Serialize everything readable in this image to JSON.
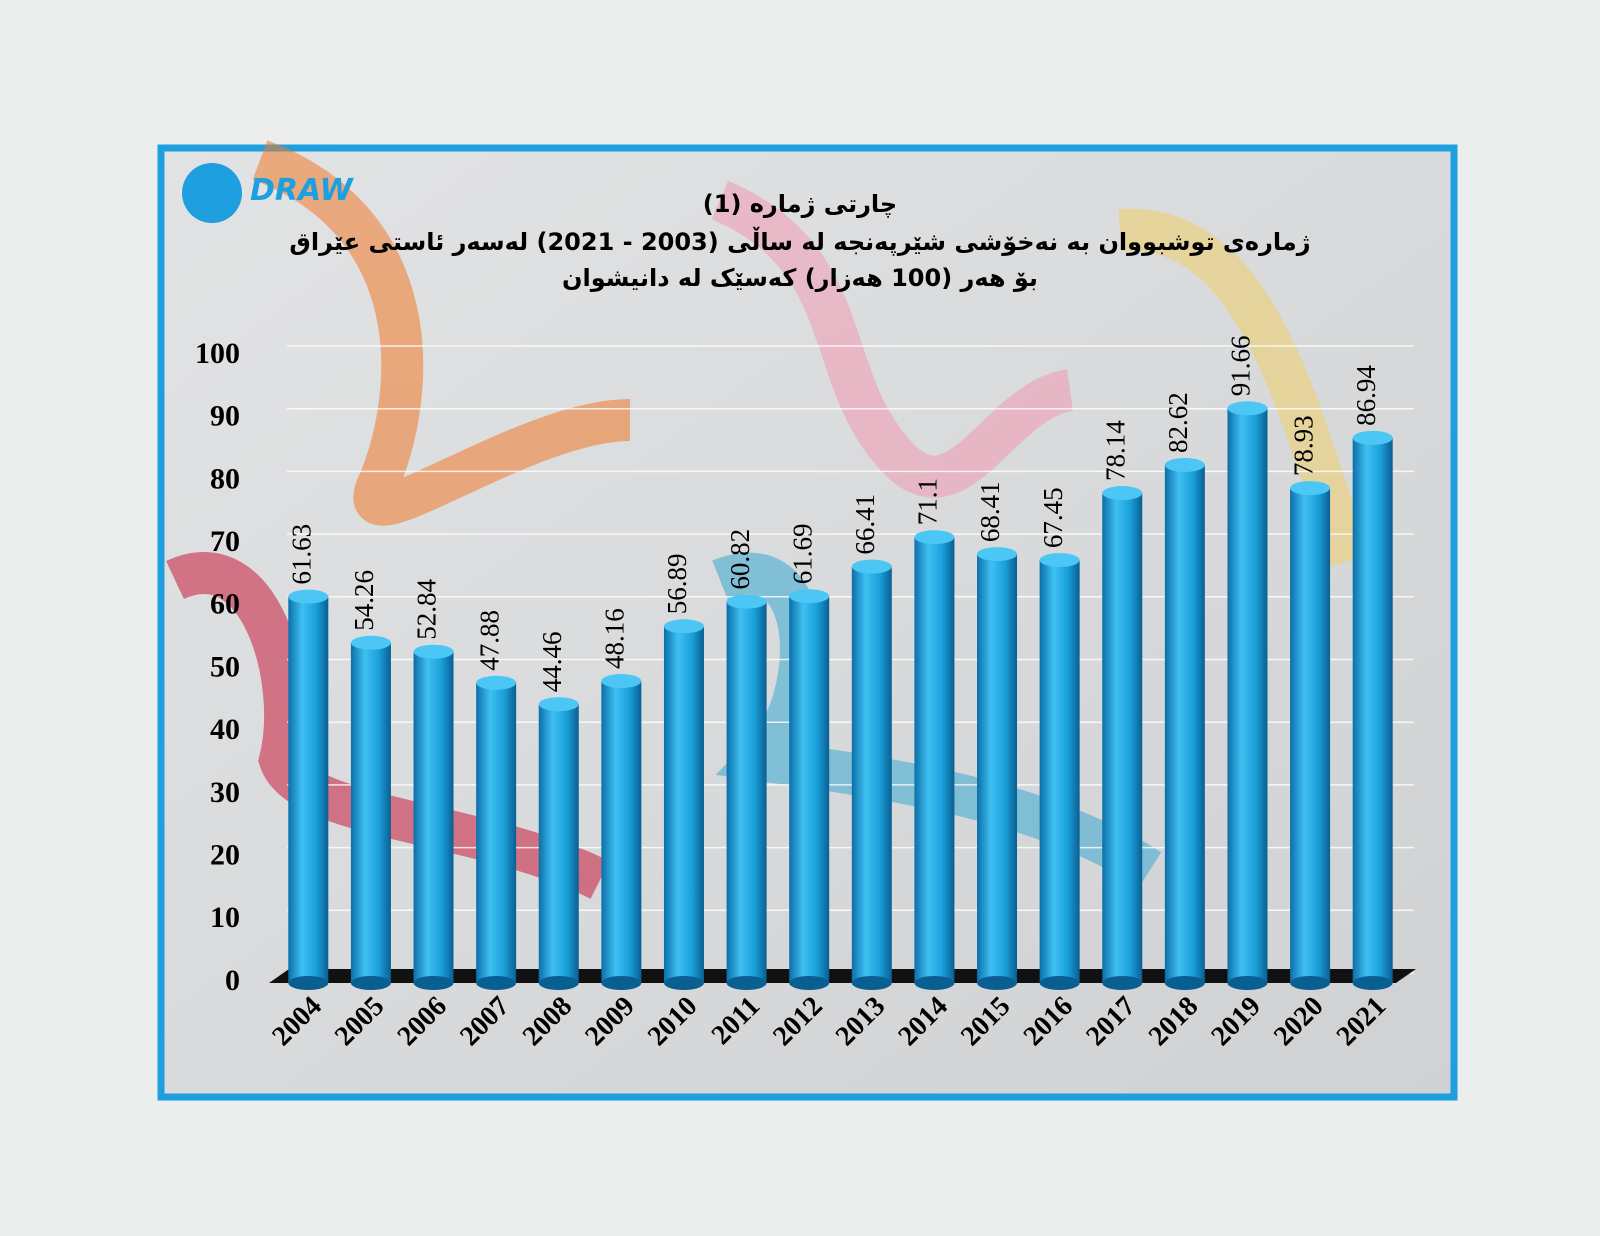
{
  "logo": "DRAW",
  "chart_data": {
    "type": "bar",
    "title": "چارتی ژمارە (1)",
    "subtitle": [
      "ژمارەی توشبووان بە نەخۆشی شێرپەنجە لە ساڵی (2003 - 2021) لەسەر ئاستی عێراق",
      "بۆ هەر (100 هەزار) کەسێک لە دانیشوان"
    ],
    "categories": [
      "2004",
      "2005",
      "2006",
      "2007",
      "2008",
      "2009",
      "2010",
      "2011",
      "2012",
      "2013",
      "2014",
      "2015",
      "2016",
      "2017",
      "2018",
      "2019",
      "2020",
      "2021"
    ],
    "values": [
      61.63,
      54.26,
      52.84,
      47.88,
      44.46,
      48.16,
      56.89,
      60.82,
      61.69,
      66.41,
      71.1,
      68.41,
      67.45,
      78.14,
      82.62,
      91.66,
      78.93,
      86.94
    ],
    "color": "#1ea3dc",
    "ylim": [
      0,
      100
    ],
    "yticks": [
      0,
      10,
      20,
      30,
      40,
      50,
      60,
      70,
      80,
      90,
      100
    ],
    "grid": true
  }
}
